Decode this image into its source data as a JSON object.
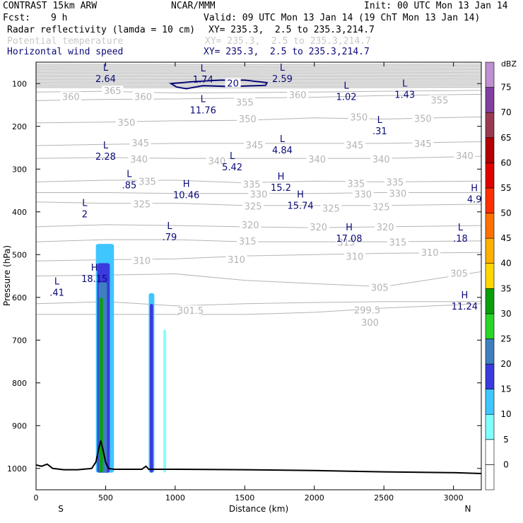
{
  "header": {
    "model": "CONTRAST 15km ARW",
    "center": "NCAR/MMM",
    "init": "Init: 00 UTC Mon 13 Jan 14",
    "fcst_label": "Fcst:",
    "fcst_value": "9 h",
    "valid": "Valid: 09 UTC Mon 13 Jan 14 (19 ChT Mon 13 Jan 14)",
    "fields": [
      {
        "name": "Radar reflectivity (lamda = 10 cm)",
        "xy": "XY= 235.3,  2.5 to 235.3,214.7",
        "color": "#000000"
      },
      {
        "name": "Potential temperature",
        "xy": "XY= 235.3,  2.5 to 235.3,214.7",
        "color": "#c8c8c8"
      },
      {
        "name": "Horizontal wind speed",
        "xy": "XY= 235.3,  2.5 to 235.3,214.7",
        "color": "#0a0a78"
      }
    ]
  },
  "chart_data": {
    "type": "cross-section",
    "xlabel": "Distance (km)",
    "ylabel": "Pressure (hPa)",
    "xlim": [
      0,
      3200
    ],
    "ylim": [
      1050,
      50
    ],
    "xticks": [
      0,
      500,
      1000,
      1500,
      2000,
      2500,
      3000
    ],
    "yticks": [
      100,
      200,
      300,
      400,
      500,
      600,
      700,
      800,
      900,
      1000
    ],
    "x_end_labels": {
      "left": "S",
      "right": "N"
    },
    "colorbar": {
      "unit": "dBZ",
      "levels": [
        0,
        5,
        10,
        15,
        20,
        25,
        30,
        35,
        40,
        45,
        50,
        55,
        60,
        65,
        70,
        75
      ],
      "colors": [
        "#ffffff",
        "#80ffff",
        "#3fc6ff",
        "#3a3adf",
        "#3f7fbf",
        "#28d628",
        "#0aa00a",
        "#ffd700",
        "#ffb000",
        "#ff7000",
        "#ff3000",
        "#e00000",
        "#b40000",
        "#9a3a50",
        "#8040a0",
        "#c090d0"
      ]
    },
    "theta_contours": [
      {
        "label": "360",
        "p_at": [
          [
            0,
            120
          ],
          [
            500,
            118
          ],
          [
            1000,
            122
          ],
          [
            1500,
            121
          ],
          [
            2000,
            120
          ],
          [
            2500,
            118
          ],
          [
            3200,
            116
          ]
        ]
      },
      {
        "label": "355",
        "p_at": [
          [
            0,
            140
          ],
          [
            500,
            137
          ],
          [
            1000,
            136
          ],
          [
            1500,
            134
          ],
          [
            2000,
            132
          ],
          [
            2500,
            128
          ],
          [
            3200,
            125
          ]
        ]
      },
      {
        "label": "350",
        "p_at": [
          [
            0,
            192
          ],
          [
            500,
            190
          ],
          [
            1000,
            187
          ],
          [
            1500,
            186
          ],
          [
            2000,
            180
          ],
          [
            2500,
            183
          ],
          [
            3200,
            178
          ]
        ]
      },
      {
        "label": "345",
        "p_at": [
          [
            0,
            245
          ],
          [
            500,
            242
          ],
          [
            1000,
            240
          ],
          [
            1500,
            240
          ],
          [
            2000,
            240
          ],
          [
            2500,
            240
          ],
          [
            3200,
            236
          ]
        ]
      },
      {
        "label": "340",
        "p_at": [
          [
            0,
            275
          ],
          [
            500,
            273
          ],
          [
            1000,
            275
          ],
          [
            1500,
            275
          ],
          [
            2000,
            275
          ],
          [
            2500,
            275
          ],
          [
            3200,
            270
          ]
        ]
      },
      {
        "label": "335",
        "p_at": [
          [
            0,
            330
          ],
          [
            500,
            326
          ],
          [
            1000,
            326
          ],
          [
            1500,
            332
          ],
          [
            2000,
            328
          ],
          [
            2500,
            330
          ],
          [
            3200,
            328
          ]
        ]
      },
      {
        "label": "330",
        "p_at": [
          [
            0,
            355
          ],
          [
            500,
            355
          ],
          [
            1000,
            357
          ],
          [
            1500,
            357
          ],
          [
            2000,
            357
          ],
          [
            2500,
            355
          ],
          [
            3200,
            355
          ]
        ]
      },
      {
        "label": "325",
        "p_at": [
          [
            0,
            377
          ],
          [
            500,
            380
          ],
          [
            1000,
            380
          ],
          [
            1500,
            385
          ],
          [
            2000,
            385
          ],
          [
            2500,
            385
          ],
          [
            3200,
            382
          ]
        ]
      },
      {
        "label": "320",
        "p_at": [
          [
            0,
            435
          ],
          [
            500,
            430
          ],
          [
            1000,
            432
          ],
          [
            1500,
            435
          ],
          [
            2000,
            437
          ],
          [
            2500,
            435
          ],
          [
            3200,
            432
          ]
        ]
      },
      {
        "label": "315",
        "p_at": [
          [
            0,
            470
          ],
          [
            500,
            465
          ],
          [
            1000,
            465
          ],
          [
            1500,
            470
          ],
          [
            2000,
            470
          ],
          [
            2500,
            470
          ],
          [
            3200,
            468
          ]
        ]
      },
      {
        "label": "310",
        "p_at": [
          [
            0,
            515
          ],
          [
            500,
            512
          ],
          [
            1000,
            510
          ],
          [
            1500,
            503
          ],
          [
            2000,
            500
          ],
          [
            2500,
            497
          ],
          [
            3200,
            495
          ]
        ]
      },
      {
        "label": "305",
        "p_at": [
          [
            0,
            550
          ],
          [
            500,
            548
          ],
          [
            1000,
            545
          ],
          [
            1500,
            560
          ],
          [
            2000,
            568
          ],
          [
            2500,
            575
          ],
          [
            3200,
            540
          ]
        ]
      },
      {
        "label": "301.5",
        "p_at": [
          [
            0,
            615
          ],
          [
            500,
            610
          ],
          [
            1000,
            620
          ],
          [
            1500,
            615
          ],
          [
            2000,
            612
          ],
          [
            2500,
            610
          ],
          [
            3200,
            610
          ]
        ]
      },
      {
        "label": "299.5",
        "p_at": [
          [
            0,
            640
          ],
          [
            500,
            640
          ],
          [
            1000,
            640
          ],
          [
            1500,
            640
          ],
          [
            2000,
            635
          ],
          [
            2500,
            625
          ],
          [
            3200,
            615
          ]
        ]
      }
    ],
    "theta_labels": [
      {
        "text": "365",
        "x": 550,
        "p": 118
      },
      {
        "text": "360",
        "x": 250,
        "p": 132
      },
      {
        "text": "360",
        "x": 770,
        "p": 132
      },
      {
        "text": "360",
        "x": 1880,
        "p": 128
      },
      {
        "text": "355",
        "x": 1500,
        "p": 145
      },
      {
        "text": "355",
        "x": 2900,
        "p": 140
      },
      {
        "text": "350",
        "x": 650,
        "p": 192
      },
      {
        "text": "350",
        "x": 1520,
        "p": 184
      },
      {
        "text": "350",
        "x": 2320,
        "p": 180
      },
      {
        "text": "350",
        "x": 2780,
        "p": 183
      },
      {
        "text": "345",
        "x": 750,
        "p": 240
      },
      {
        "text": "345",
        "x": 1570,
        "p": 245
      },
      {
        "text": "345",
        "x": 2290,
        "p": 245
      },
      {
        "text": "345",
        "x": 2780,
        "p": 242
      },
      {
        "text": "340",
        "x": 740,
        "p": 278
      },
      {
        "text": "340",
        "x": 1300,
        "p": 282
      },
      {
        "text": "340",
        "x": 2020,
        "p": 278
      },
      {
        "text": "340",
        "x": 2480,
        "p": 278
      },
      {
        "text": "340",
        "x": 3080,
        "p": 270
      },
      {
        "text": "335",
        "x": 800,
        "p": 330
      },
      {
        "text": "335",
        "x": 1550,
        "p": 337
      },
      {
        "text": "335",
        "x": 2300,
        "p": 335
      },
      {
        "text": "335",
        "x": 2580,
        "p": 332
      },
      {
        "text": "330",
        "x": 1600,
        "p": 360
      },
      {
        "text": "330",
        "x": 2350,
        "p": 360
      },
      {
        "text": "330",
        "x": 2600,
        "p": 358
      },
      {
        "text": "325",
        "x": 760,
        "p": 383
      },
      {
        "text": "325",
        "x": 1560,
        "p": 388
      },
      {
        "text": "325",
        "x": 2120,
        "p": 393
      },
      {
        "text": "325",
        "x": 2480,
        "p": 390
      },
      {
        "text": "320",
        "x": 1540,
        "p": 432
      },
      {
        "text": "320",
        "x": 2030,
        "p": 437
      },
      {
        "text": "320",
        "x": 2510,
        "p": 437
      },
      {
        "text": "315",
        "x": 1520,
        "p": 470
      },
      {
        "text": "315",
        "x": 2230,
        "p": 472
      },
      {
        "text": "315",
        "x": 2600,
        "p": 472
      },
      {
        "text": "310",
        "x": 760,
        "p": 515
      },
      {
        "text": "310",
        "x": 1440,
        "p": 513
      },
      {
        "text": "310",
        "x": 2290,
        "p": 505
      },
      {
        "text": "310",
        "x": 2830,
        "p": 496
      },
      {
        "text": "305",
        "x": 2470,
        "p": 578
      },
      {
        "text": "305",
        "x": 3040,
        "p": 545
      },
      {
        "text": "301.5",
        "x": 1110,
        "p": 632
      },
      {
        "text": "299.5",
        "x": 2380,
        "p": 631
      },
      {
        "text": "300",
        "x": 2400,
        "p": 660
      }
    ],
    "wind_extrema": [
      {
        "type": "L",
        "value": "2.64",
        "x": 500,
        "p": 78
      },
      {
        "type": "L",
        "value": "1.74",
        "x": 1200,
        "p": 80
      },
      {
        "type": "L",
        "value": "2.59",
        "x": 1770,
        "p": 78
      },
      {
        "type": "",
        "value": "20",
        "x": 1415,
        "p": 99
      },
      {
        "type": "L",
        "value": "11.76",
        "x": 1200,
        "p": 152
      },
      {
        "type": "L",
        "value": "1.02",
        "x": 2230,
        "p": 120
      },
      {
        "type": "L",
        "value": "1.43",
        "x": 2650,
        "p": 115
      },
      {
        "type": "L",
        "value": ".31",
        "x": 2470,
        "p": 200
      },
      {
        "type": "L",
        "value": "2.28",
        "x": 500,
        "p": 260
      },
      {
        "type": "L",
        "value": "4.84",
        "x": 1770,
        "p": 245
      },
      {
        "type": "L",
        "value": "5.42",
        "x": 1410,
        "p": 285
      },
      {
        "type": "L",
        "value": ".85",
        "x": 670,
        "p": 327
      },
      {
        "type": "H",
        "value": "15.2",
        "x": 1760,
        "p": 333
      },
      {
        "type": "H",
        "value": "10.46",
        "x": 1080,
        "p": 350
      },
      {
        "type": "H",
        "value": "4.9",
        "x": 3150,
        "p": 360
      },
      {
        "type": "H",
        "value": "15.74",
        "x": 1900,
        "p": 375
      },
      {
        "type": "L",
        "value": "2",
        "x": 350,
        "p": 395
      },
      {
        "type": "L",
        "value": ".79",
        "x": 960,
        "p": 448
      },
      {
        "type": "H",
        "value": "17.08",
        "x": 2250,
        "p": 452
      },
      {
        "type": "L",
        "value": ".18",
        "x": 3050,
        "p": 452
      },
      {
        "type": "H",
        "value": "18.15",
        "x": 420,
        "p": 546
      },
      {
        "type": "L",
        "value": ".41",
        "x": 150,
        "p": 578
      },
      {
        "type": "H",
        "value": "11.24",
        "x": 3080,
        "p": 610
      }
    ],
    "wind_contour_20": {
      "level": 20,
      "points": [
        [
          970,
          100
        ],
        [
          1150,
          95
        ],
        [
          1330,
          92
        ],
        [
          1500,
          92
        ],
        [
          1660,
          98
        ],
        [
          1650,
          104
        ],
        [
          1400,
          107
        ],
        [
          1200,
          105
        ],
        [
          1080,
          112
        ],
        [
          1010,
          108
        ]
      ]
    },
    "reflectivity_columns": [
      {
        "dbz": 10,
        "x0": 430,
        "x1": 560,
        "p_top": 475,
        "p_bot": 1010
      },
      {
        "dbz": 15,
        "x0": 440,
        "x1": 530,
        "p_top": 520,
        "p_bot": 1010
      },
      {
        "dbz": 20,
        "x0": 450,
        "x1": 510,
        "p_top": 565,
        "p_bot": 1010
      },
      {
        "dbz": 30,
        "x0": 455,
        "x1": 480,
        "p_top": 600,
        "p_bot": 1010
      },
      {
        "dbz": 10,
        "x0": 810,
        "x1": 850,
        "p_top": 590,
        "p_bot": 1010
      },
      {
        "dbz": 15,
        "x0": 818,
        "x1": 842,
        "p_top": 615,
        "p_bot": 1010
      },
      {
        "dbz": 5,
        "x0": 915,
        "x1": 935,
        "p_top": 675,
        "p_bot": 1010
      }
    ],
    "terrain": [
      [
        0,
        992
      ],
      [
        40,
        995
      ],
      [
        80,
        990
      ],
      [
        120,
        1000
      ],
      [
        200,
        1003
      ],
      [
        300,
        1003
      ],
      [
        400,
        1000
      ],
      [
        430,
        985
      ],
      [
        450,
        955
      ],
      [
        465,
        935
      ],
      [
        480,
        955
      ],
      [
        500,
        985
      ],
      [
        520,
        1000
      ],
      [
        560,
        1002
      ],
      [
        760,
        1002
      ],
      [
        790,
        995
      ],
      [
        810,
        1002
      ],
      [
        1000,
        1002
      ],
      [
        1500,
        1003
      ],
      [
        2000,
        1005
      ],
      [
        2500,
        1008
      ],
      [
        3000,
        1010
      ],
      [
        3200,
        1012
      ]
    ]
  }
}
